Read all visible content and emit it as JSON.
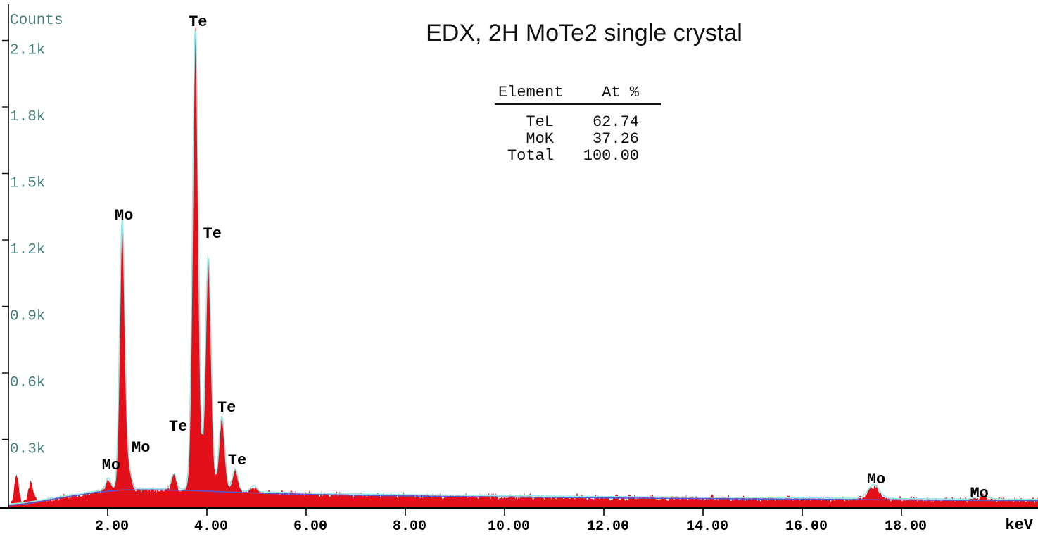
{
  "title": "EDX, 2H MoTe2 single crystal",
  "composition_table": {
    "header": {
      "element": "Element",
      "at_pct": "At %"
    },
    "rows": [
      {
        "element": "TeL",
        "at_pct": "62.74"
      },
      {
        "element": "MoK",
        "at_pct": "37.26"
      },
      {
        "element": "Total",
        "at_pct": "100.00"
      }
    ]
  },
  "colors": {
    "spectrum_fill": "#e3101a",
    "fit_line": "#9ae7e7",
    "background_line": "#5b57c9",
    "y_label_text": "#457d7d",
    "axis": "#000000",
    "annotation_text": "#000000"
  },
  "chart_data": {
    "type": "area",
    "title": "EDX, 2H MoTe2 single crystal",
    "xlabel": "keV",
    "ylabel": "Counts",
    "xlim": [
      0,
      20.85
    ],
    "ylim": [
      0,
      2283
    ],
    "grid": false,
    "legend": "none",
    "xticks": [
      {
        "value": 2,
        "label": "2.00"
      },
      {
        "value": 4,
        "label": "4.00"
      },
      {
        "value": 6,
        "label": "6.00"
      },
      {
        "value": 8,
        "label": "8.00"
      },
      {
        "value": 10,
        "label": "10.00"
      },
      {
        "value": 12,
        "label": "12.00"
      },
      {
        "value": 14,
        "label": "14.00"
      },
      {
        "value": 16,
        "label": "16.00"
      },
      {
        "value": 18,
        "label": "18.00"
      }
    ],
    "yticks": [
      {
        "value": 300,
        "label": "0.3k"
      },
      {
        "value": 600,
        "label": "0.6k"
      },
      {
        "value": 900,
        "label": "0.9k"
      },
      {
        "value": 1200,
        "label": "1.2k"
      },
      {
        "value": 1500,
        "label": "1.5k"
      },
      {
        "value": 1800,
        "label": "1.8k"
      },
      {
        "value": 2100,
        "label": "2.1k"
      }
    ],
    "series": [
      {
        "name": "measured spectrum",
        "style": "filled-noisy-area",
        "color": "#e3101a"
      },
      {
        "name": "fit envelope",
        "style": "line",
        "color": "#9ae7e7"
      },
      {
        "name": "bremsstrahlung background",
        "style": "line",
        "color": "#5b57c9"
      }
    ],
    "background_points_keV_counts": [
      [
        0,
        2
      ],
      [
        0.3,
        8
      ],
      [
        0.6,
        18
      ],
      [
        1.0,
        34
      ],
      [
        1.4,
        48
      ],
      [
        1.8,
        62
      ],
      [
        2.3,
        72
      ],
      [
        3.0,
        72
      ],
      [
        3.6,
        70
      ],
      [
        4.2,
        65
      ],
      [
        5.0,
        58
      ],
      [
        6.0,
        52
      ],
      [
        7.0,
        48
      ],
      [
        8.0,
        45
      ],
      [
        9.0,
        42
      ],
      [
        10.0,
        40
      ],
      [
        11.0,
        38
      ],
      [
        12.0,
        36
      ],
      [
        13.0,
        34.5
      ],
      [
        14.0,
        33
      ],
      [
        15.0,
        31.5
      ],
      [
        16.0,
        30
      ],
      [
        17.0,
        28.5
      ],
      [
        18.0,
        27
      ],
      [
        19.0,
        25
      ],
      [
        20.0,
        24
      ],
      [
        20.85,
        23
      ]
    ],
    "fitted_peaks": [
      {
        "element": "Mo",
        "line": "Ll",
        "keV": 2.015,
        "amplitude": 55,
        "sigma": 0.05
      },
      {
        "element": "Mo",
        "line": "La",
        "keV": 2.293,
        "amplitude": 1210,
        "sigma": 0.052
      },
      {
        "element": "Mo",
        "line": "Lb",
        "keV": 2.41,
        "amplitude": 100,
        "sigma": 0.06
      },
      {
        "element": "Te",
        "line": "Ll",
        "keV": 3.335,
        "amplitude": 70,
        "sigma": 0.05
      },
      {
        "element": "Te",
        "line": "La",
        "keV": 3.769,
        "amplitude": 2095,
        "sigma": 0.058
      },
      {
        "element": "Te",
        "line": "Lb1",
        "keV": 4.029,
        "amplitude": 1058,
        "sigma": 0.058
      },
      {
        "element": "Te",
        "line": "Lb2",
        "keV": 4.302,
        "amplitude": 335,
        "sigma": 0.058
      },
      {
        "element": "Te",
        "line": "Lg",
        "keV": 4.571,
        "amplitude": 100,
        "sigma": 0.055
      },
      {
        "element": "",
        "line": "",
        "keV": 4.94,
        "amplitude": 28,
        "sigma": 0.06
      },
      {
        "element": "Mo",
        "line": "Ka",
        "keV": 17.44,
        "amplitude": 62,
        "sigma": 0.115
      },
      {
        "element": "Mo",
        "line": "Kb",
        "keV": 19.63,
        "amplitude": 14,
        "sigma": 0.13
      }
    ],
    "unfitted_low_energy_peaks": [
      {
        "keV": 0.16,
        "amplitude": 140,
        "sigma": 0.045
      },
      {
        "keV": 0.45,
        "amplitude": 95,
        "sigma": 0.05
      }
    ],
    "annotations": [
      {
        "label": "Te",
        "keV": 3.82,
        "counts": 2165
      },
      {
        "label": "Mo",
        "keV": 2.33,
        "counts": 1292
      },
      {
        "label": "Te",
        "keV": 4.11,
        "counts": 1210
      },
      {
        "label": "Te",
        "keV": 4.4,
        "counts": 425
      },
      {
        "label": "Te",
        "keV": 3.42,
        "counts": 340
      },
      {
        "label": "Mo",
        "keV": 2.67,
        "counts": 244
      },
      {
        "label": "Te",
        "keV": 4.61,
        "counts": 187
      },
      {
        "label": "Mo",
        "keV": 2.07,
        "counts": 165
      },
      {
        "label": "Mo",
        "keV": 17.49,
        "counts": 102
      },
      {
        "label": "Mo",
        "keV": 19.57,
        "counts": 38
      }
    ]
  }
}
